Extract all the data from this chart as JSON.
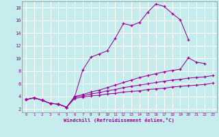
{
  "xlabel": "Windchill (Refroidissement éolien,°C)",
  "bg_color": "#c6eced",
  "grid_color": "#ffffff",
  "line_color": "#990099",
  "xlim": [
    -0.5,
    23.5
  ],
  "ylim": [
    1.5,
    19.0
  ],
  "xticks": [
    0,
    1,
    2,
    3,
    4,
    5,
    6,
    7,
    8,
    9,
    10,
    11,
    12,
    13,
    14,
    15,
    16,
    17,
    18,
    19,
    20,
    21,
    22,
    23
  ],
  "yticks": [
    2,
    4,
    6,
    8,
    10,
    12,
    14,
    16,
    18
  ],
  "series": [
    {
      "x": [
        0,
        1,
        2,
        3,
        4,
        5,
        6,
        7,
        8,
        9,
        10,
        11,
        12,
        13,
        14,
        15,
        16,
        17,
        18,
        19,
        20
      ],
      "y": [
        3.5,
        3.8,
        3.4,
        2.9,
        2.8,
        2.3,
        4.0,
        8.2,
        10.2,
        10.7,
        11.2,
        13.2,
        15.5,
        15.2,
        15.7,
        17.3,
        18.6,
        18.2,
        17.1,
        16.1,
        13.0
      ]
    },
    {
      "x": [
        0,
        1,
        2,
        3,
        4,
        5,
        6,
        7,
        8,
        9,
        10,
        11,
        12,
        13,
        14,
        15,
        16,
        17,
        18,
        19,
        20,
        21,
        22
      ],
      "y": [
        3.5,
        3.8,
        3.4,
        2.9,
        2.8,
        2.3,
        4.0,
        4.3,
        4.7,
        5.0,
        5.4,
        5.8,
        6.2,
        6.6,
        7.0,
        7.3,
        7.6,
        7.9,
        8.1,
        8.3,
        10.1,
        9.4,
        9.2
      ]
    },
    {
      "x": [
        0,
        1,
        2,
        3,
        4,
        5,
        6,
        7,
        8,
        9,
        10,
        11,
        12,
        13,
        14,
        15,
        16,
        17,
        18,
        19,
        20,
        21,
        22,
        23
      ],
      "y": [
        3.5,
        3.8,
        3.4,
        2.9,
        2.8,
        2.3,
        3.9,
        4.1,
        4.4,
        4.6,
        4.9,
        5.1,
        5.4,
        5.6,
        5.8,
        6.0,
        6.2,
        6.4,
        6.6,
        6.7,
        6.9,
        7.0,
        7.1,
        7.3
      ]
    },
    {
      "x": [
        0,
        1,
        2,
        3,
        4,
        5,
        6,
        7,
        8,
        9,
        10,
        11,
        12,
        13,
        14,
        15,
        16,
        17,
        18,
        19,
        20,
        21,
        22,
        23
      ],
      "y": [
        3.5,
        3.8,
        3.4,
        2.9,
        2.8,
        2.3,
        3.7,
        3.9,
        4.1,
        4.2,
        4.4,
        4.5,
        4.7,
        4.8,
        4.9,
        5.1,
        5.2,
        5.3,
        5.5,
        5.6,
        5.7,
        5.8,
        5.9,
        6.1
      ]
    }
  ]
}
